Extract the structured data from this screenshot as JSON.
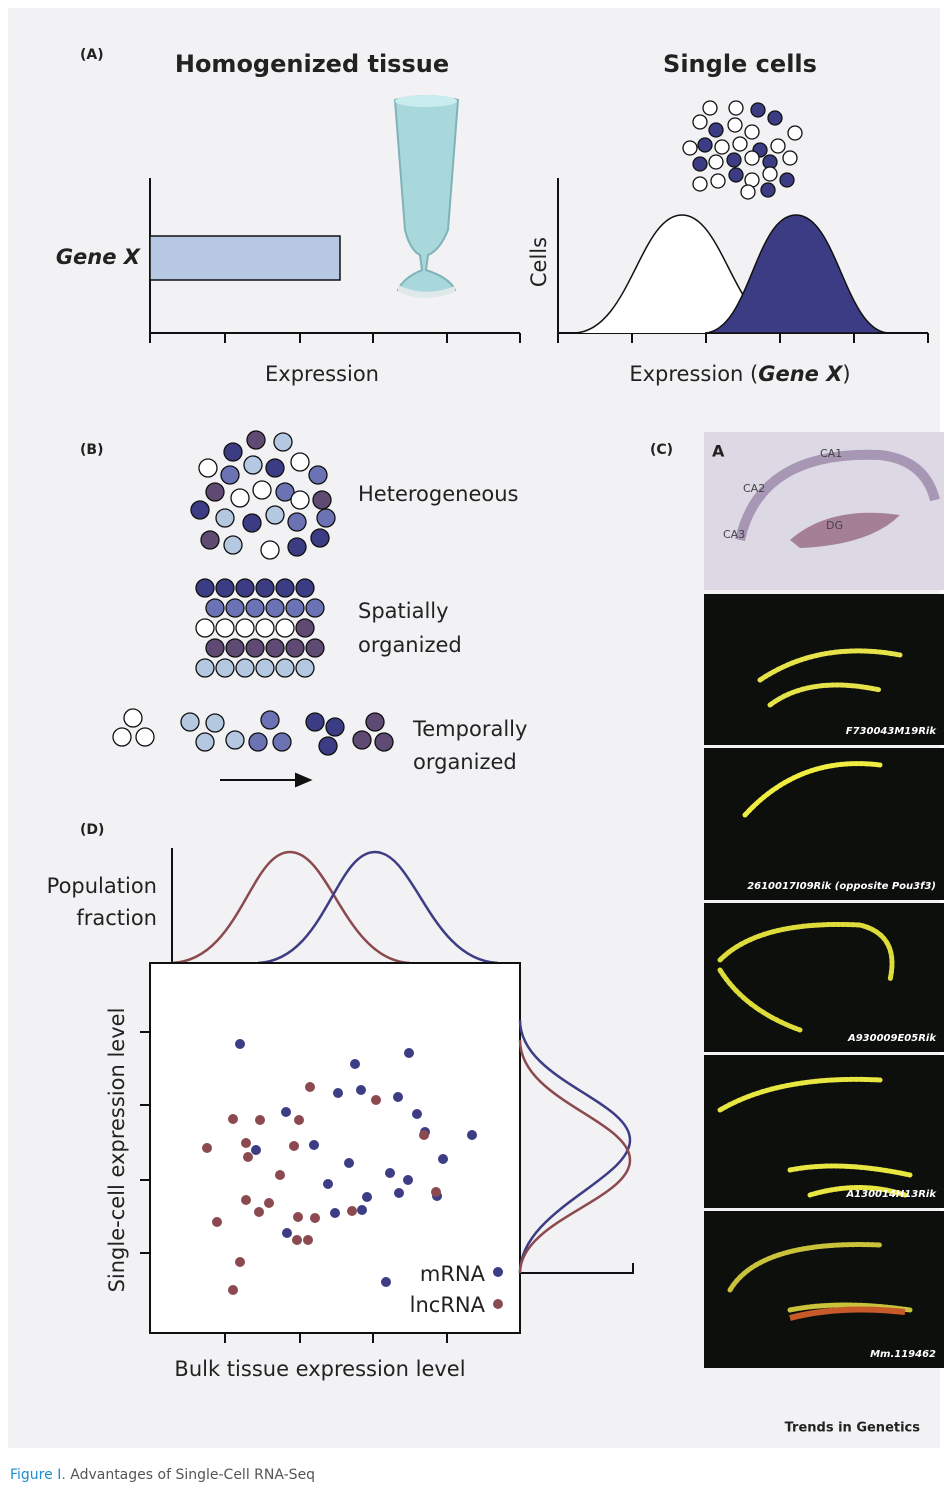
{
  "figure": {
    "panel_a": {
      "label": "(A)",
      "left_title": "Homogenized tissue",
      "right_title": "Single cells",
      "gene_label": "Gene X",
      "left_x_label": "Expression",
      "right_y_label": "Cells",
      "right_x_label": {
        "prefix": "Expression (",
        "emphasis": "Gene X",
        "suffix": ")"
      }
    },
    "panel_b": {
      "label": "(B)",
      "heterogeneous": "Heterogeneous",
      "spatial": [
        "Spatially",
        "organized"
      ],
      "temporal": [
        "Temporally",
        "organized"
      ]
    },
    "panel_c": {
      "label": "(C)",
      "histology_labels": [
        "A",
        "CA1",
        "CA2",
        "CA3",
        "DG"
      ],
      "genes": [
        "F730043M19Rik",
        "2610017I09Rik (opposite Pou3f3)",
        "A930009E05Rik",
        "A130014H13Rik",
        "Mm.119462"
      ]
    },
    "panel_d": {
      "label": "(D)",
      "top_label": [
        "Population",
        "fraction"
      ],
      "y_label": "Single-cell expression level",
      "x_label": "Bulk tissue expression level",
      "legend": [
        "mRNA",
        "lncRNA"
      ]
    },
    "source": "Trends in Genetics",
    "caption": {
      "number": "Figure I.",
      "text": "Advantages of Single-Cell RNA-Seq"
    }
  }
}
